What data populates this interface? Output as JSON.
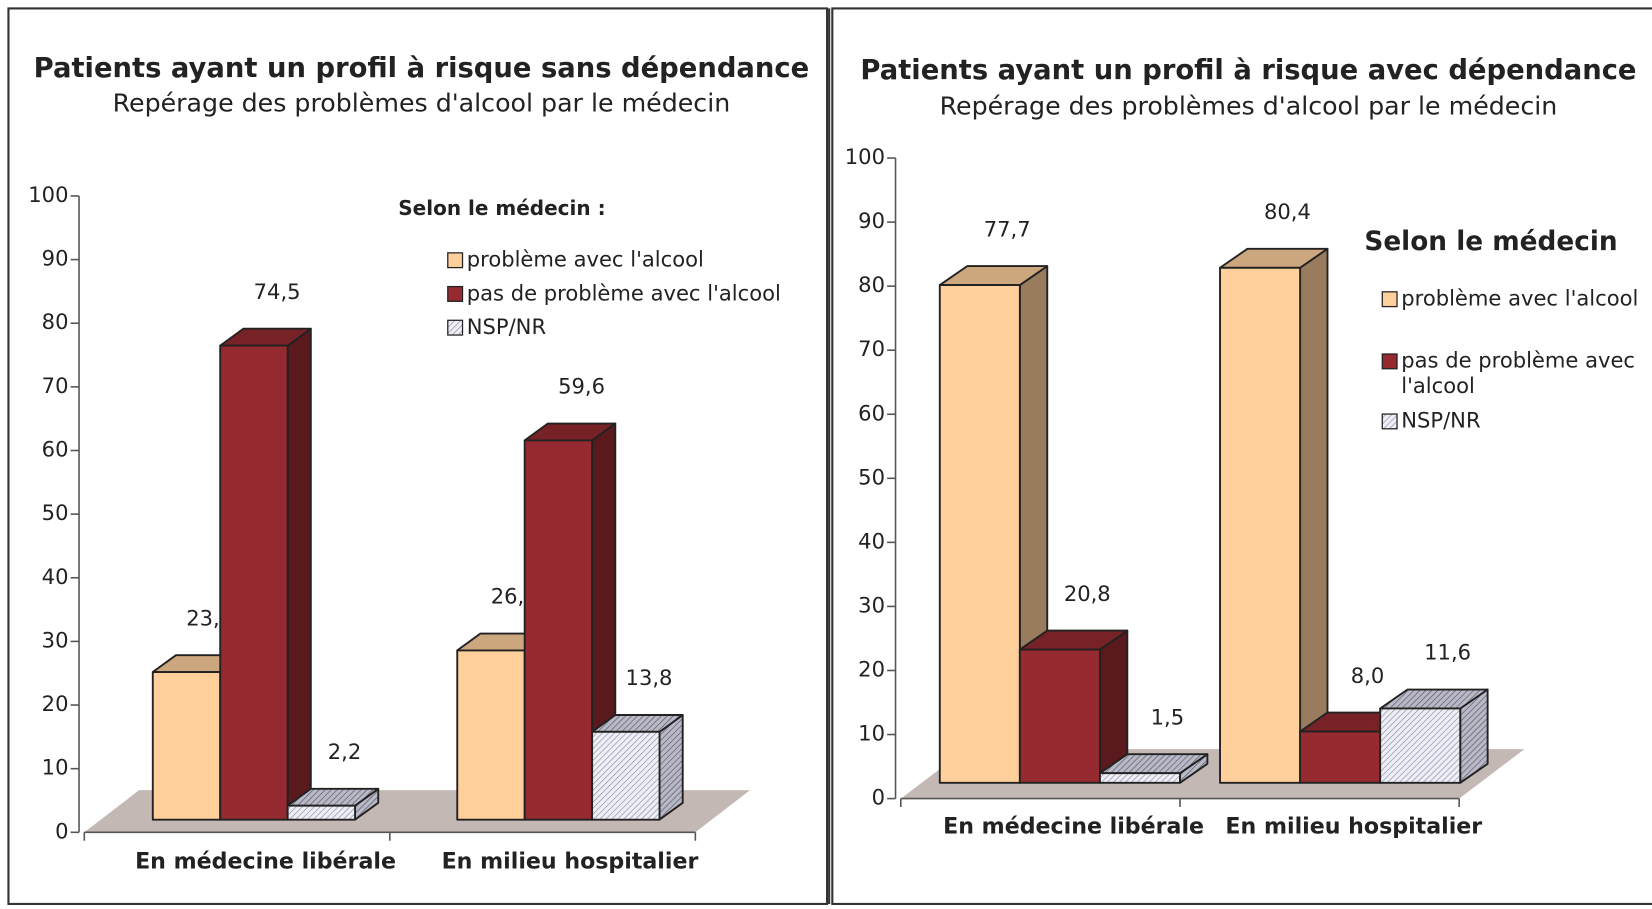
{
  "chart_data": [
    {
      "type": "bar3d",
      "title": "Patients ayant un profil à risque sans dépendance",
      "subtitle": "Repérage des problèmes d'alcool par le médecin",
      "legend_title": "Selon le médecin :",
      "categories": [
        "En médecine libérale",
        "En milieu hospitalier"
      ],
      "series": [
        {
          "name": "problème avec l'alcool",
          "color": "#ffcf9c",
          "values": [
            23.2,
            26.6
          ],
          "value_labels": [
            "23,2",
            "26,6"
          ]
        },
        {
          "name": "pas de problème avec l'alcool",
          "color": "#952a30",
          "values": [
            74.5,
            59.6
          ],
          "value_labels": [
            "74,5",
            "59,6"
          ]
        },
        {
          "name": "NSP/NR",
          "color": "#e4e4f0",
          "pattern": "hatch",
          "values": [
            2.2,
            13.8
          ],
          "value_labels": [
            "2,2",
            "13,8"
          ]
        }
      ],
      "ylim": [
        0,
        100
      ],
      "yticks": [
        0,
        10,
        20,
        30,
        40,
        50,
        60,
        70,
        80,
        90,
        100
      ]
    },
    {
      "type": "bar3d",
      "title": "Patients ayant un profil à risque avec dépendance",
      "subtitle": "Repérage des problèmes d'alcool par le médecin",
      "legend_title": "Selon le médecin",
      "categories": [
        "En médecine libérale",
        "En milieu hospitalier"
      ],
      "series": [
        {
          "name": "problème avec l'alcool",
          "color": "#ffcf9c",
          "values": [
            77.7,
            80.4
          ],
          "value_labels": [
            "77,7",
            "80,4"
          ]
        },
        {
          "name": "pas de problème avec l'alcool",
          "color": "#952a30",
          "values": [
            20.8,
            8.0
          ],
          "value_labels": [
            "20,8",
            "8,0"
          ]
        },
        {
          "name": "NSP/NR",
          "color": "#e4e4f0",
          "pattern": "hatch",
          "values": [
            1.5,
            11.6
          ],
          "value_labels": [
            "1,5",
            "11,6"
          ]
        }
      ],
      "ylim": [
        0,
        100
      ],
      "yticks": [
        0,
        10,
        20,
        30,
        40,
        50,
        60,
        70,
        80,
        90,
        100
      ]
    }
  ]
}
